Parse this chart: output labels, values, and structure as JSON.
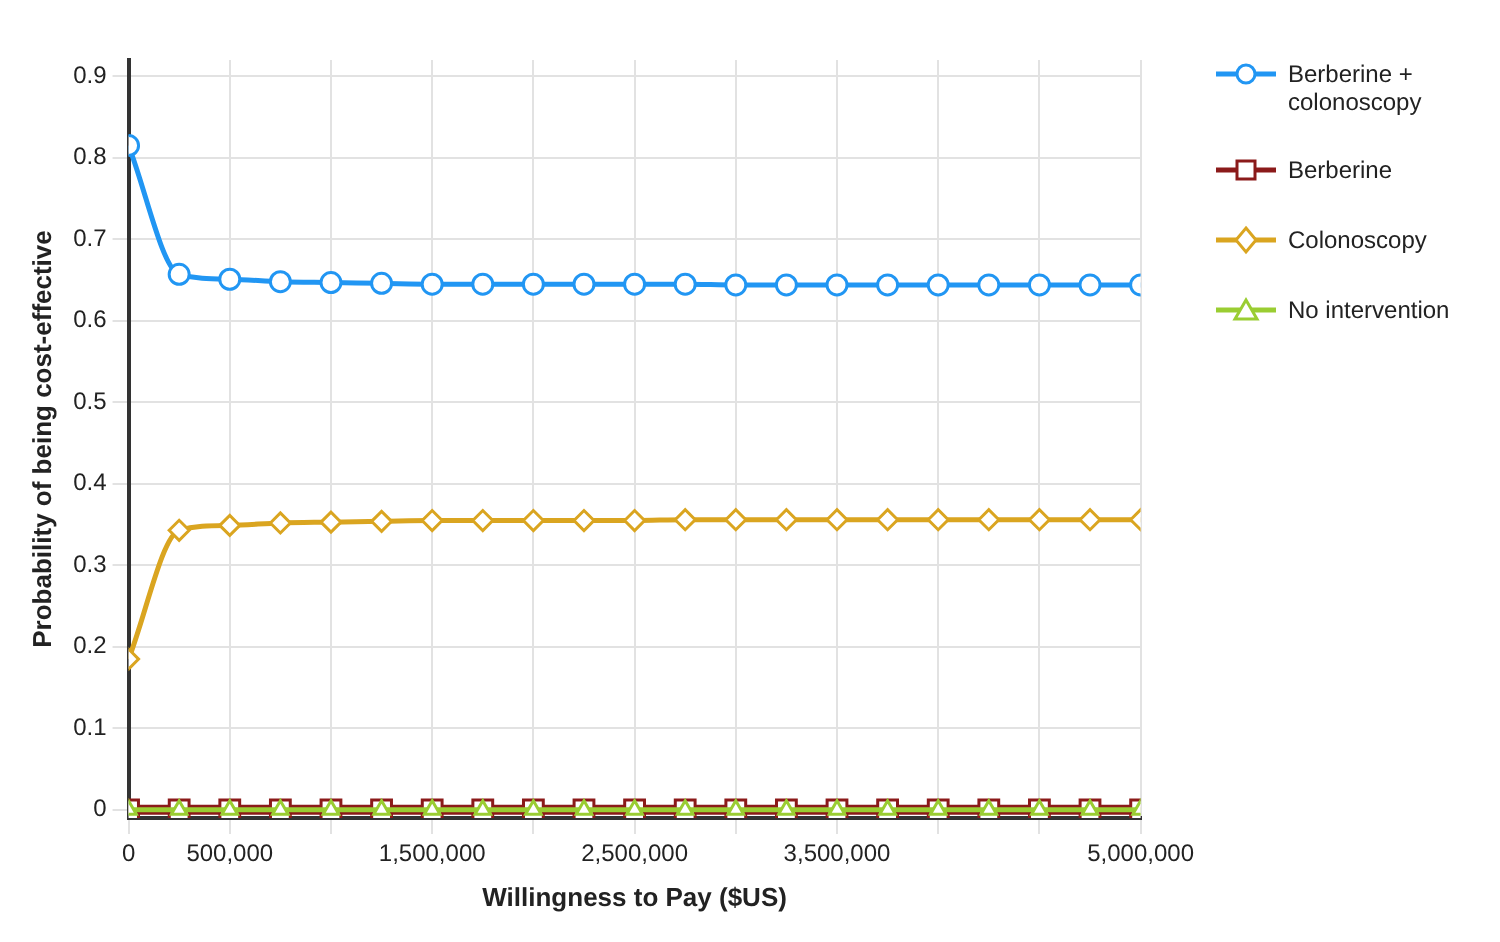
{
  "chart_data": {
    "type": "line",
    "xlabel": "Willingness to Pay ($US)",
    "ylabel": "Probability of being cost-effective",
    "x": [
      0,
      250000,
      500000,
      750000,
      1000000,
      1250000,
      1500000,
      1750000,
      2000000,
      2250000,
      2500000,
      2750000,
      3000000,
      3250000,
      3500000,
      3750000,
      4000000,
      4250000,
      4500000,
      4750000,
      5000000
    ],
    "xlim": [
      0,
      5000000
    ],
    "xticks": [
      0,
      {
        "value": 500000,
        "label": "500,000"
      },
      {
        "value": 1000000,
        "label": null
      },
      {
        "value": 1500000,
        "label": "1,500,000"
      },
      {
        "value": 2000000,
        "label": null
      },
      {
        "value": 2500000,
        "label": "2,500,000"
      },
      {
        "value": 3000000,
        "label": null
      },
      {
        "value": 3500000,
        "label": "3,500,000"
      },
      {
        "value": 4000000,
        "label": null
      },
      {
        "value": 4500000,
        "label": null
      },
      {
        "value": 5000000,
        "label": "5,000,000"
      }
    ],
    "ylim": [
      -0.01,
      0.92
    ],
    "yticks": [
      0,
      0.1,
      0.2,
      0.3,
      0.4,
      0.5,
      0.6,
      0.7,
      0.8,
      0.9
    ],
    "grid": true,
    "legend": "top right",
    "series": [
      {
        "name": "Berberine + colonoscopy",
        "color": "#2196f3",
        "marker": "circle",
        "values": [
          0.815,
          0.657,
          0.651,
          0.648,
          0.647,
          0.646,
          0.645,
          0.645,
          0.645,
          0.645,
          0.645,
          0.645,
          0.644,
          0.644,
          0.644,
          0.644,
          0.644,
          0.644,
          0.644,
          0.644,
          0.644
        ]
      },
      {
        "name": "Berberine",
        "color": "#8b1a1a",
        "marker": "square",
        "values": [
          0,
          0,
          0,
          0,
          0,
          0,
          0,
          0,
          0,
          0,
          0,
          0,
          0,
          0,
          0,
          0,
          0,
          0,
          0,
          0,
          0
        ]
      },
      {
        "name": "Colonoscopy",
        "color": "#daa520",
        "marker": "diamond",
        "values": [
          0.185,
          0.343,
          0.349,
          0.352,
          0.353,
          0.354,
          0.355,
          0.355,
          0.355,
          0.355,
          0.355,
          0.356,
          0.356,
          0.356,
          0.356,
          0.356,
          0.356,
          0.356,
          0.356,
          0.356,
          0.356
        ]
      },
      {
        "name": "No intervention",
        "color": "#9acd32",
        "marker": "triangle",
        "values": [
          0,
          0,
          0,
          0,
          0,
          0,
          0,
          0,
          0,
          0,
          0,
          0,
          0,
          0,
          0,
          0,
          0,
          0,
          0,
          0,
          0
        ]
      }
    ]
  }
}
